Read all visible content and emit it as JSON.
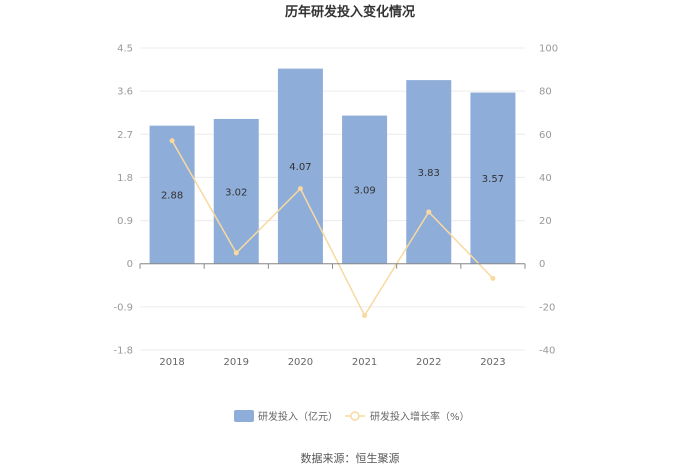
{
  "chart_data": {
    "type": "bar",
    "title": "历年研发投入变化情况",
    "categories": [
      "2018",
      "2019",
      "2020",
      "2021",
      "2022",
      "2023"
    ],
    "series": [
      {
        "name": "研发投入（亿元）",
        "type": "bar",
        "axis": "left",
        "values": [
          2.88,
          3.02,
          4.07,
          3.09,
          3.83,
          3.57
        ],
        "labels": [
          "2.88",
          "3.02",
          "4.07",
          "3.09",
          "3.83",
          "3.57"
        ],
        "color": "#8eadd9"
      },
      {
        "name": "研发投入增长率（%）",
        "type": "line",
        "axis": "right",
        "values": [
          57,
          5,
          34.8,
          -24,
          24,
          -6.8
        ],
        "color": "#f8d9a0"
      }
    ],
    "y_left": {
      "ylim": [
        -1.8,
        4.5
      ],
      "ticks": [
        "4.5",
        "3.6",
        "2.7",
        "1.8",
        "0.9",
        "0",
        "-0.9",
        "-1.8"
      ]
    },
    "y_right": {
      "ylim": [
        -40,
        100
      ],
      "ticks": [
        "100",
        "80",
        "60",
        "40",
        "20",
        "0",
        "-20",
        "-40"
      ]
    },
    "grid": true,
    "legend_position": "bottom",
    "source": "数据来源：恒生聚源"
  }
}
